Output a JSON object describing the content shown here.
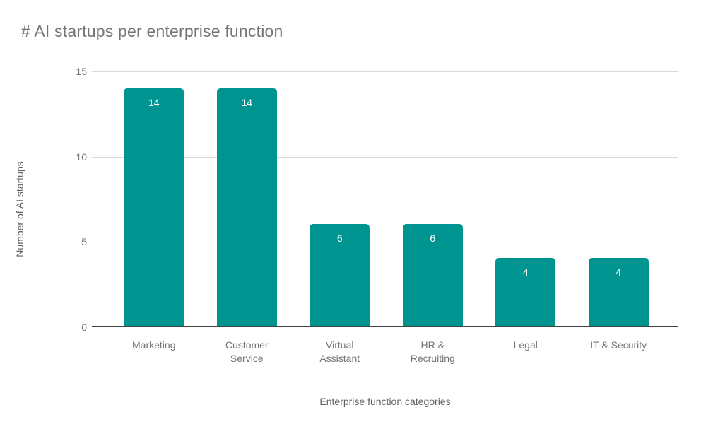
{
  "chart_data": {
    "type": "bar",
    "title": "# AI startups per enterprise function",
    "xlabel": "Enterprise function categories",
    "ylabel": "Number of AI startups",
    "categories": [
      "Marketing",
      "Customer Service",
      "Virtual Assistant",
      "HR & Recruiting",
      "Legal",
      "IT & Security"
    ],
    "values": [
      14,
      14,
      6,
      6,
      4,
      4
    ],
    "bar_labels": [
      "14",
      "14",
      "6",
      "6",
      "4",
      "4"
    ],
    "ylim": [
      0,
      15
    ],
    "yticks": [
      0,
      5,
      10,
      15
    ],
    "grid": true,
    "legend": "none",
    "bar_label_position": "inside-top-center",
    "colors": {
      "bar_fill": "#009491",
      "bar_label_text": "#ffffff",
      "title_text": "#757575",
      "axis_title_text": "#616161",
      "tick_label_text": "#757575",
      "gridline": "#dadada",
      "baseline": "#424242",
      "background": "#ffffff"
    }
  }
}
